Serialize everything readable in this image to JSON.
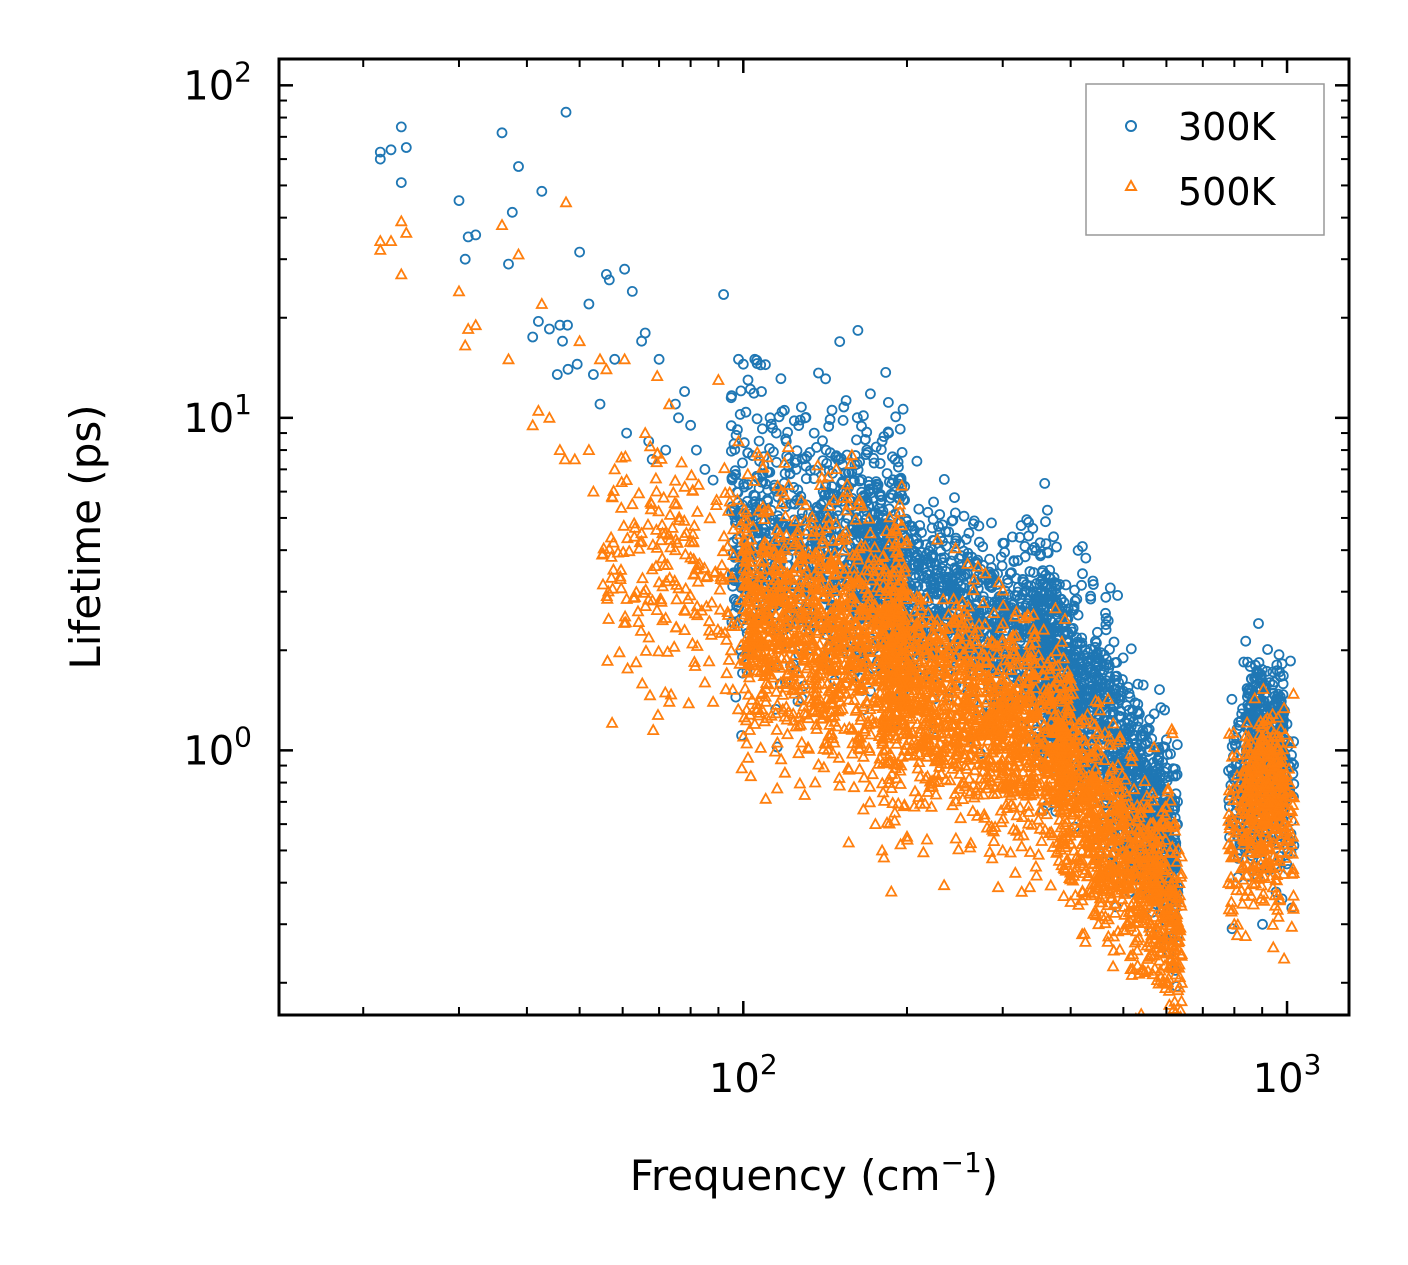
{
  "chart_data": {
    "type": "scatter",
    "xscale": "log",
    "yscale": "log",
    "xlim": [
      14,
      1300
    ],
    "ylim": [
      0.16,
      120
    ],
    "xlabel": "Frequency (cm",
    "xlabel_sup": "−1",
    "xlabel_end": ")",
    "ylabel": "Lifetime (ps)",
    "x_ticks": [
      {
        "value": 100,
        "base": "10",
        "exp": "2"
      },
      {
        "value": 1000,
        "base": "10",
        "exp": "3"
      }
    ],
    "y_ticks": [
      {
        "value": 1,
        "base": "10",
        "exp": "0"
      },
      {
        "value": 10,
        "base": "10",
        "exp": "1"
      },
      {
        "value": 100,
        "base": "10",
        "exp": "2"
      }
    ],
    "legend_position": "top-right",
    "series": [
      {
        "name": "300K",
        "color": "#1f77b4",
        "marker": "circle",
        "points": [
          [
            21.5,
            63
          ],
          [
            21.5,
            60
          ],
          [
            22.5,
            64
          ],
          [
            23.5,
            75
          ],
          [
            23.5,
            51
          ],
          [
            24,
            65
          ],
          [
            30,
            45
          ],
          [
            30.8,
            30
          ],
          [
            31.2,
            35
          ],
          [
            32.2,
            35.5
          ],
          [
            36,
            72
          ],
          [
            37,
            29
          ],
          [
            37.6,
            41.5
          ],
          [
            38.6,
            57
          ],
          [
            41,
            17.5
          ],
          [
            42.6,
            48
          ],
          [
            42,
            19.5
          ],
          [
            44,
            18.5
          ],
          [
            45.5,
            13.5
          ],
          [
            46,
            19
          ],
          [
            46.5,
            17
          ],
          [
            47.5,
            19
          ],
          [
            47.2,
            83
          ],
          [
            47.6,
            14
          ],
          [
            49.5,
            14.5
          ],
          [
            50,
            31.5
          ],
          [
            52,
            22
          ],
          [
            53,
            13.5
          ],
          [
            54.5,
            11
          ],
          [
            56,
            27
          ],
          [
            56.7,
            26
          ],
          [
            58,
            15
          ],
          [
            60.5,
            28
          ],
          [
            61,
            9
          ],
          [
            62.5,
            24
          ],
          [
            65,
            17
          ],
          [
            66,
            18
          ],
          [
            67,
            8.5
          ],
          [
            68,
            7.5
          ],
          [
            70,
            15
          ],
          [
            72,
            8
          ],
          [
            75,
            11
          ],
          [
            76,
            10
          ],
          [
            78,
            12
          ],
          [
            80,
            9.5
          ],
          [
            82,
            8
          ],
          [
            85,
            7
          ],
          [
            88,
            6.5
          ],
          [
            92,
            23.5
          ],
          [
            95,
            11.5
          ],
          [
            98,
            15
          ],
          [
            100,
            14.5
          ],
          [
            102,
            13
          ],
          [
            105,
            15
          ],
          [
            108,
            12
          ],
          [
            112,
            10
          ],
          [
            115,
            9
          ],
          [
            120,
            8.5
          ],
          [
            125,
            7
          ],
          [
            130,
            10
          ],
          [
            135,
            9
          ],
          [
            142,
            8
          ],
          [
            150,
            7.5
          ],
          [
            160,
            6.5
          ],
          [
            170,
            6
          ],
          [
            180,
            8.5
          ],
          [
            185,
            9
          ],
          [
            190,
            7.5
          ],
          [
            195,
            6.5
          ],
          [
            260,
            4.5
          ],
          [
            265,
            4.8
          ],
          [
            320,
            2.3
          ],
          [
            350,
            2.8
          ],
          [
            460,
            1.4
          ],
          [
            480,
            1.3
          ],
          [
            510,
            1.05
          ],
          [
            540,
            0.85
          ],
          [
            575,
            0.72
          ],
          [
            620,
            0.35
          ],
          [
            620,
            0.32
          ],
          [
            790,
            0.88
          ],
          [
            810,
            0.78
          ],
          [
            880,
            1.7
          ],
          [
            900,
            1.75
          ],
          [
            930,
            1.6
          ],
          [
            960,
            1.45
          ],
          [
            1000,
            1.2
          ],
          [
            1025,
            0.85
          ]
        ],
        "bands": [
          {
            "x": [
              95,
              200
            ],
            "center": [
              4.5,
              3.6
            ],
            "spread": 0.2,
            "n": 900
          },
          {
            "x": [
              160,
              380
            ],
            "center": [
              3.6,
              2.0
            ],
            "spread": 0.14,
            "n": 1100
          },
          {
            "x": [
              340,
              480
            ],
            "center": [
              2.1,
              1.1
            ],
            "spread": 0.16,
            "n": 700
          },
          {
            "x": [
              480,
              630
            ],
            "center": [
              1.0,
              0.45
            ],
            "spread": 0.15,
            "n": 600
          },
          {
            "x": [
              780,
              1030
            ],
            "center": [
              0.75,
              0.75
            ],
            "spread": 0.14,
            "n": 250
          },
          {
            "x": [
              840,
              990
            ],
            "center": [
              1.3,
              1.1
            ],
            "spread": 0.09,
            "n": 250
          }
        ]
      },
      {
        "name": "500K",
        "color": "#ff7f0e",
        "marker": "triangle",
        "points": [
          [
            21.5,
            34
          ],
          [
            21.5,
            32
          ],
          [
            22.5,
            34
          ],
          [
            23.5,
            39
          ],
          [
            23.5,
            27
          ],
          [
            24,
            36
          ],
          [
            30,
            24
          ],
          [
            30.8,
            16.5
          ],
          [
            31.2,
            18.5
          ],
          [
            32.2,
            19
          ],
          [
            36,
            38
          ],
          [
            37,
            15
          ],
          [
            38.6,
            31
          ],
          [
            41,
            9.5
          ],
          [
            42,
            10.5
          ],
          [
            42.6,
            22
          ],
          [
            44,
            10
          ],
          [
            46,
            8
          ],
          [
            47,
            7.5
          ],
          [
            47.2,
            44.5
          ],
          [
            49,
            7.5
          ],
          [
            50,
            17
          ],
          [
            52,
            8
          ],
          [
            53,
            6
          ],
          [
            54.5,
            15
          ],
          [
            56,
            14
          ],
          [
            58,
            7
          ],
          [
            60.5,
            15
          ],
          [
            61,
            6.5
          ],
          [
            62.5,
            5.5
          ],
          [
            65,
            4.5
          ],
          [
            66,
            9
          ],
          [
            68,
            3.5
          ],
          [
            70,
            3.2
          ],
          [
            72,
            2.5
          ],
          [
            75,
            4
          ],
          [
            78,
            2.3
          ],
          [
            80,
            3.8
          ],
          [
            85,
            1.6
          ],
          [
            88,
            1.4
          ],
          [
            90,
            13
          ],
          [
            95,
            2
          ],
          [
            98,
            8.5
          ],
          [
            100,
            1.1
          ],
          [
            102,
            0.95
          ],
          [
            105,
            1.2
          ],
          [
            110,
            1.4
          ],
          [
            115,
            1.5
          ],
          [
            120,
            1.35
          ],
          [
            150,
            0.95
          ],
          [
            175,
            0.6
          ],
          [
            180,
            0.5
          ],
          [
            190,
            0.65
          ],
          [
            200,
            0.55
          ],
          [
            250,
            0.85
          ],
          [
            300,
            0.5
          ],
          [
            400,
            0.35
          ],
          [
            420,
            0.28
          ],
          [
            450,
            0.3
          ],
          [
            480,
            0.25
          ],
          [
            520,
            0.22
          ],
          [
            560,
            0.3
          ],
          [
            600,
            0.2
          ],
          [
            630,
            0.19
          ],
          [
            640,
            0.2
          ],
          [
            790,
            0.35
          ],
          [
            800,
            0.3
          ],
          [
            830,
            0.45
          ],
          [
            880,
            1.0
          ],
          [
            900,
            1.1
          ],
          [
            920,
            1.25
          ],
          [
            960,
            1.0
          ],
          [
            1000,
            0.75
          ],
          [
            1025,
            0.55
          ]
        ],
        "bands": [
          {
            "x": [
              55,
              110
            ],
            "center": [
              4.0,
              2.8
            ],
            "spread": 0.2,
            "n": 250
          },
          {
            "x": [
              100,
              200
            ],
            "center": [
              2.6,
              1.9
            ],
            "spread": 0.2,
            "n": 1100
          },
          {
            "x": [
              180,
              400
            ],
            "center": [
              1.7,
              0.95
            ],
            "spread": 0.17,
            "n": 1300
          },
          {
            "x": [
              380,
              640
            ],
            "center": [
              0.85,
              0.3
            ],
            "spread": 0.16,
            "n": 900
          },
          {
            "x": [
              780,
              1030
            ],
            "center": [
              0.55,
              0.6
            ],
            "spread": 0.15,
            "n": 260
          },
          {
            "x": [
              840,
              990
            ],
            "center": [
              0.85,
              0.8
            ],
            "spread": 0.1,
            "n": 200
          }
        ]
      }
    ]
  }
}
